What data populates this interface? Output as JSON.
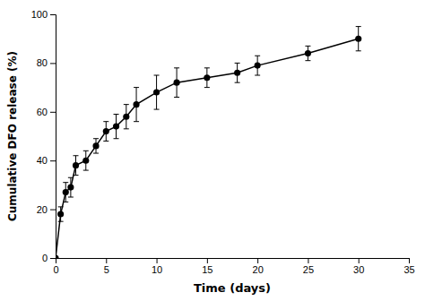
{
  "chart_data": {
    "type": "line",
    "x_label": "Time (days)",
    "y_label": "Cumulative DFO release (%)",
    "x": [
      0,
      0.5,
      1,
      1.5,
      2,
      3,
      4,
      5,
      6,
      7,
      8,
      10,
      12,
      15,
      18,
      20,
      25,
      30
    ],
    "series": [
      {
        "color": "#000000",
        "marker": "circle",
        "values": [
          0,
          18,
          27,
          29,
          38,
          40,
          46,
          52,
          54,
          58,
          63,
          68,
          72,
          74,
          76,
          79,
          84,
          90
        ],
        "errors": [
          0,
          3,
          4,
          4,
          4,
          4,
          3,
          4,
          5,
          5,
          7,
          7,
          6,
          4,
          4,
          4,
          3,
          5
        ]
      }
    ],
    "xlim": [
      0,
      35
    ],
    "ylim": [
      0,
      100
    ],
    "xticks": [
      0,
      5,
      10,
      15,
      20,
      25,
      30,
      35
    ],
    "yticks": [
      0,
      20,
      40,
      60,
      80,
      100
    ],
    "grid": false
  }
}
